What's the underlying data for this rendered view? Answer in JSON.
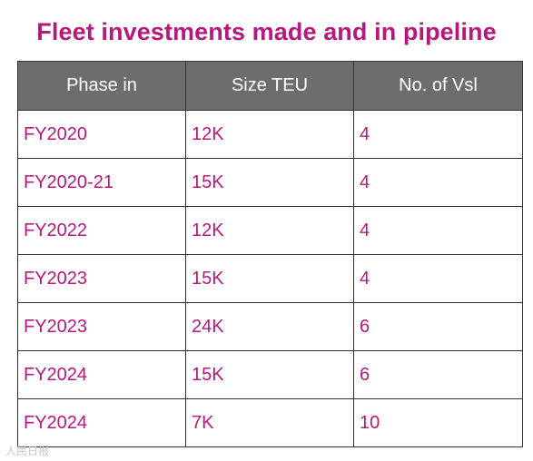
{
  "title": "Fleet investments made and in pipeline",
  "table": {
    "headers": [
      "Phase in",
      "Size TEU",
      "No. of Vsl"
    ],
    "rows": [
      [
        "FY2020",
        "12K",
        "4"
      ],
      [
        "FY2020-21",
        "15K",
        "4"
      ],
      [
        "FY2022",
        "12K",
        "4"
      ],
      [
        "FY2023",
        "15K",
        "4"
      ],
      [
        "FY2023",
        "24K",
        "6"
      ],
      [
        "FY2024",
        "15K",
        "6"
      ],
      [
        "FY2024",
        "7K",
        "10"
      ]
    ]
  },
  "watermark": "人民日报",
  "colors": {
    "accent": "#b5197e",
    "header_bg": "#6d6d6d"
  }
}
